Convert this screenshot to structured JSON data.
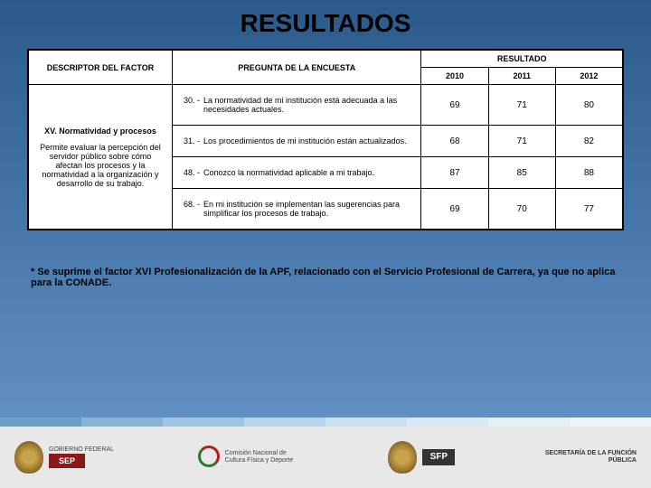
{
  "title": "RESULTADOS",
  "headers": {
    "descriptor": "DESCRIPTOR DEL FACTOR",
    "question": "PREGUNTA DE LA ENCUESTA",
    "result": "RESULTADO",
    "y2010": "2010",
    "y2011": "2011",
    "y2012": "2012"
  },
  "descriptor": {
    "heading": "XV. Normatividad y procesos",
    "body": "Permite evaluar la percepción del servidor público sobre cómo afectan los procesos y la normatividad a la organización y desarrollo de su trabajo."
  },
  "rows": [
    {
      "num": "30. -",
      "text": "La normatividad de mi institución está adecuada a las necesidades actuales.",
      "v2010": "69",
      "v2011": "71",
      "v2012": "80"
    },
    {
      "num": "31. -",
      "text": "Los procedimientos de mi institución están actualizados.",
      "v2010": "68",
      "v2011": "71",
      "v2012": "82"
    },
    {
      "num": "48. -",
      "text": "Conozco la normatividad aplicable a mi trabajo.",
      "v2010": "87",
      "v2011": "85",
      "v2012": "88"
    },
    {
      "num": "68. -",
      "text": "En mi institución se implementan las sugerencias para simplificar los procesos de trabajo.",
      "v2010": "69",
      "v2011": "70",
      "v2012": "77"
    }
  ],
  "footnote": "* Se suprime el factor XVI Profesionalización de la APF, relacionado con el Servicio Profesional de Carrera, ya que no aplica para la CONADE.",
  "stripe_colors": [
    "#6aa0c8",
    "#84b4d6",
    "#9ec6e2",
    "#b4d4ea",
    "#c8e0f0",
    "#d8e9f4",
    "#e4f0f8",
    "#eef5fa"
  ],
  "logos": {
    "gobierno": "GOBIERNO FEDERAL",
    "sep": "SEP",
    "conade": "Comisión Nacional de Cultura Física y Deporte",
    "sfp": "SFP",
    "secretaria": "SECRETARÍA DE LA FUNCIÓN PÚBLICA"
  }
}
